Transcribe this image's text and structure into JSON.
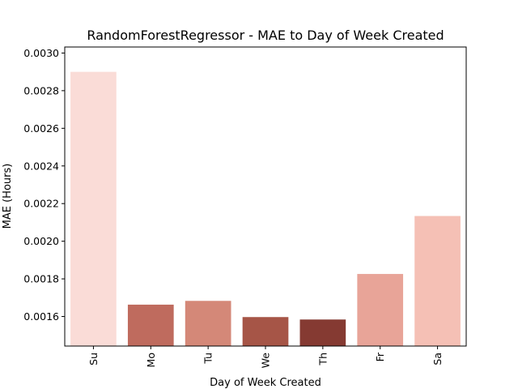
{
  "chart_data": {
    "type": "bar",
    "title": "RandomForestRegressor - MAE to Day of Week Created",
    "xlabel": "Day of Week Created",
    "ylabel": "MAE (Hours)",
    "categories": [
      "Su",
      "Mo",
      "Tu",
      "We",
      "Th",
      "Fr",
      "Sa"
    ],
    "values": [
      0.0029,
      0.001663,
      0.001683,
      0.001597,
      0.001584,
      0.001826,
      0.002134
    ],
    "colors": [
      "#fadcd7",
      "#bf6b5e",
      "#d48878",
      "#a65547",
      "#853a32",
      "#e8a498",
      "#f5c0b5"
    ],
    "ylim": [
      0.001443,
      0.003032
    ],
    "yticks": [
      0.0016,
      0.0018,
      0.002,
      0.0022,
      0.0024,
      0.0026,
      0.0028,
      0.003
    ],
    "ytick_labels": [
      "0.0016",
      "0.0018",
      "0.0020",
      "0.0022",
      "0.0024",
      "0.0026",
      "0.0028",
      "0.0030"
    ],
    "grid": false,
    "legend": "none"
  }
}
